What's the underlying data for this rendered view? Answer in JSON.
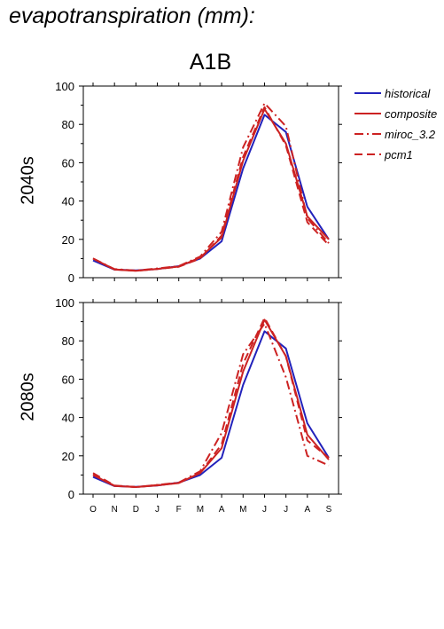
{
  "page_title": "evapotranspiration (mm):",
  "column_title": "A1B",
  "colors": {
    "historical": "#2222bb",
    "future": "#cc2222"
  },
  "legend": [
    {
      "name": "historical",
      "style": "solid",
      "color": "#2222bb"
    },
    {
      "name": "composite",
      "style": "solid",
      "color": "#cc2222"
    },
    {
      "name": "miroc_3.2",
      "style": "dashdot",
      "color": "#cc2222"
    },
    {
      "name": "pcm1",
      "style": "dashed",
      "color": "#cc2222"
    }
  ],
  "chart_data": [
    {
      "type": "line",
      "row_label": "2040s",
      "categories": [
        "O",
        "N",
        "D",
        "J",
        "F",
        "M",
        "A",
        "M",
        "J",
        "J",
        "A",
        "S"
      ],
      "ylim": [
        0,
        100
      ],
      "yticks": [
        0,
        20,
        40,
        60,
        80,
        100
      ],
      "series": [
        {
          "name": "historical",
          "style": "solid",
          "color": "#2222bb",
          "values": [
            9,
            4.2,
            3.8,
            4.5,
            6,
            10,
            19,
            57,
            85,
            76,
            37,
            20
          ]
        },
        {
          "name": "composite",
          "style": "solid",
          "color": "#cc2222",
          "values": [
            10,
            4.2,
            3.6,
            4.6,
            5.8,
            10.5,
            21,
            61,
            88,
            70,
            32,
            20
          ]
        },
        {
          "name": "miroc_3.2",
          "style": "dashdot",
          "color": "#cc2222",
          "values": [
            10,
            4.5,
            3.7,
            4.8,
            6,
            11,
            24,
            68,
            91,
            79,
            31,
            18
          ]
        },
        {
          "name": "pcm1",
          "style": "dashed",
          "color": "#cc2222",
          "values": [
            10,
            4.3,
            3.6,
            4.5,
            5.7,
            10,
            22,
            63,
            89,
            69,
            29,
            17
          ]
        }
      ]
    },
    {
      "type": "line",
      "row_label": "2080s",
      "categories": [
        "O",
        "N",
        "D",
        "J",
        "F",
        "M",
        "A",
        "M",
        "J",
        "J",
        "A",
        "S"
      ],
      "ylim": [
        0,
        100
      ],
      "yticks": [
        0,
        20,
        40,
        60,
        80,
        100
      ],
      "series": [
        {
          "name": "historical",
          "style": "solid",
          "color": "#2222bb",
          "values": [
            9,
            4.2,
            3.8,
            4.5,
            6,
            10,
            19,
            57,
            85,
            76,
            37,
            19
          ]
        },
        {
          "name": "composite",
          "style": "solid",
          "color": "#cc2222",
          "values": [
            10,
            4.3,
            3.7,
            4.6,
            5.8,
            11,
            24,
            64,
            91,
            72,
            31,
            18
          ]
        },
        {
          "name": "miroc_3.2",
          "style": "dashdot",
          "color": "#cc2222",
          "values": [
            10,
            4.4,
            3.7,
            4.8,
            6,
            12,
            32,
            73,
            89,
            61,
            20,
            15
          ]
        },
        {
          "name": "pcm1",
          "style": "dashed",
          "color": "#cc2222",
          "values": [
            11,
            4.5,
            3.7,
            4.7,
            5.9,
            11,
            26,
            68,
            92,
            72,
            28,
            19
          ]
        }
      ]
    }
  ]
}
